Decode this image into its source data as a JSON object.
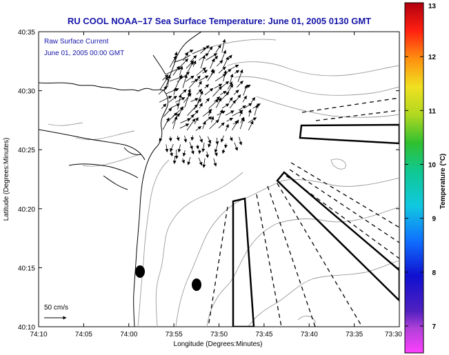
{
  "title": "RU COOL  NOAA–17  Sea Surface Temperature:  June 01, 2005 0130 GMT",
  "annotation": {
    "line1": "Raw Surface Current",
    "line2": "June 01, 2005 00:00 GMT"
  },
  "scale_label": "50 cm/s",
  "axes": {
    "x_title": "Longitude (Degrees:Minutes)",
    "y_title": "Latitude (Degrees:Minutes)",
    "x_ticks": [
      "74:10",
      "74:05",
      "74:00",
      "73:55",
      "73:50",
      "73:45",
      "73:40",
      "73:35",
      "73:30"
    ],
    "y_ticks": [
      "40:35",
      "40:30",
      "40:25",
      "40:20",
      "40:15",
      "40:10"
    ]
  },
  "colorbar": {
    "title": "Temperature (°C)",
    "ticks": [
      "13",
      "12",
      "11",
      "10",
      "9",
      "8",
      "7"
    ],
    "range": [
      6.5,
      13
    ]
  },
  "colors": {
    "title": "#1414a8",
    "contour": "#9a9a9a",
    "coast": "#000000"
  }
}
